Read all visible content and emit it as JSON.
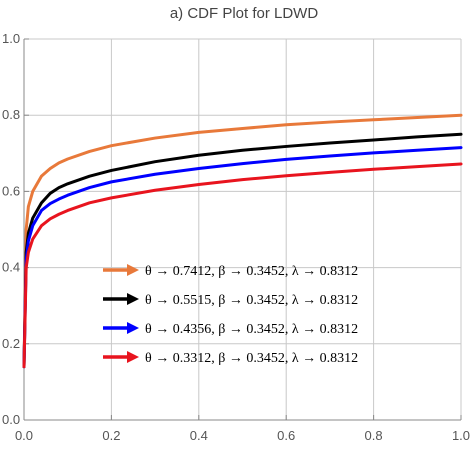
{
  "chart_data": {
    "type": "line",
    "title": "a) CDF Plot for LDWD",
    "xlabel": "",
    "ylabel": "",
    "xlim": [
      0.0,
      1.0
    ],
    "ylim": [
      0.0,
      1.0
    ],
    "x_ticks": [
      "0.0",
      "0.2",
      "0.4",
      "0.6",
      "0.8",
      "1.0"
    ],
    "y_ticks": [
      "0.0",
      "0.2",
      "0.4",
      "0.6",
      "0.8",
      "1.0"
    ],
    "grid": true,
    "legend_position": "center",
    "series": [
      {
        "name": "θ → 0.7412, β → 0.3452, λ → 0.8312",
        "color": "#E8793A",
        "x": [
          0.0,
          0.005,
          0.01,
          0.02,
          0.04,
          0.06,
          0.08,
          0.1,
          0.15,
          0.2,
          0.3,
          0.4,
          0.5,
          0.6,
          0.7,
          0.8,
          0.9,
          1.0
        ],
        "y": [
          0.14,
          0.5,
          0.56,
          0.6,
          0.64,
          0.66,
          0.675,
          0.685,
          0.705,
          0.72,
          0.74,
          0.755,
          0.765,
          0.775,
          0.782,
          0.788,
          0.794,
          0.8
        ]
      },
      {
        "name": "θ → 0.5515, β → 0.3452, λ → 0.8312",
        "color": "#000000",
        "x": [
          0.0,
          0.005,
          0.01,
          0.02,
          0.04,
          0.06,
          0.08,
          0.1,
          0.15,
          0.2,
          0.3,
          0.4,
          0.5,
          0.6,
          0.7,
          0.8,
          0.9,
          1.0
        ],
        "y": [
          0.14,
          0.44,
          0.49,
          0.53,
          0.57,
          0.595,
          0.61,
          0.62,
          0.64,
          0.655,
          0.678,
          0.695,
          0.708,
          0.718,
          0.727,
          0.735,
          0.743,
          0.75
        ]
      },
      {
        "name": "θ → 0.4356, β → 0.3452, λ → 0.8312",
        "color": "#0000FF",
        "x": [
          0.0,
          0.005,
          0.01,
          0.02,
          0.04,
          0.06,
          0.08,
          0.1,
          0.15,
          0.2,
          0.3,
          0.4,
          0.5,
          0.6,
          0.7,
          0.8,
          0.9,
          1.0
        ],
        "y": [
          0.14,
          0.42,
          0.47,
          0.51,
          0.55,
          0.568,
          0.58,
          0.59,
          0.61,
          0.625,
          0.645,
          0.66,
          0.673,
          0.684,
          0.693,
          0.701,
          0.708,
          0.715
        ]
      },
      {
        "name": "θ → 0.3312, β → 0.3452, λ → 0.8312",
        "color": "#E8141E",
        "x": [
          0.0,
          0.005,
          0.01,
          0.02,
          0.04,
          0.06,
          0.08,
          0.1,
          0.15,
          0.2,
          0.3,
          0.4,
          0.5,
          0.6,
          0.7,
          0.8,
          0.9,
          1.0
        ],
        "y": [
          0.14,
          0.4,
          0.44,
          0.475,
          0.51,
          0.528,
          0.54,
          0.55,
          0.57,
          0.583,
          0.603,
          0.618,
          0.631,
          0.641,
          0.65,
          0.658,
          0.665,
          0.672
        ]
      }
    ]
  }
}
